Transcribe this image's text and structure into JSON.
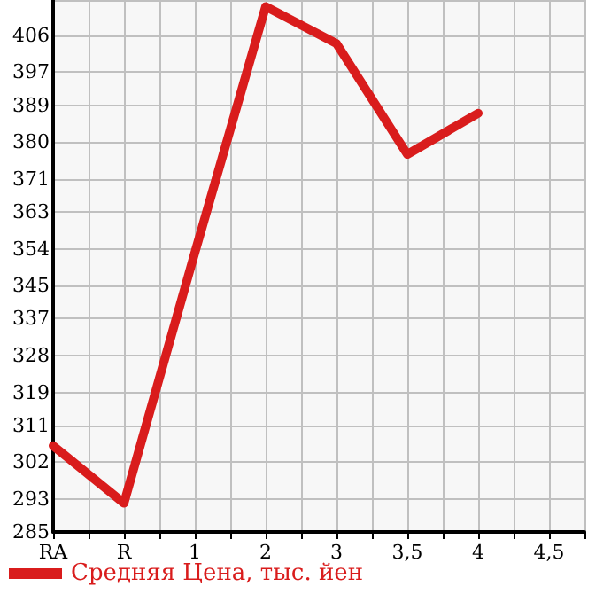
{
  "chart_data": {
    "type": "line",
    "categories": [
      "RA",
      null,
      "R",
      null,
      "1",
      null,
      "2",
      null,
      "3",
      null,
      "3,5",
      null,
      "4",
      null,
      "4,5",
      null
    ],
    "series": [
      {
        "name": "Средняя Цена, тыс. йен",
        "color": "#d91c1c",
        "values": [
          306,
          null,
          292,
          null,
          353,
          null,
          413,
          null,
          404,
          null,
          377,
          null,
          387,
          null,
          null,
          null
        ]
      }
    ],
    "ylim": [
      285,
      414.6
    ],
    "yticks": [
      285,
      293,
      302,
      311,
      319,
      328,
      337,
      345,
      354,
      363,
      371,
      380,
      389,
      397,
      406,
      {
        "value": 414.6,
        "label": null
      }
    ],
    "grid": true,
    "legend": "bottom left",
    "marker": "none",
    "line_style": "solid"
  }
}
